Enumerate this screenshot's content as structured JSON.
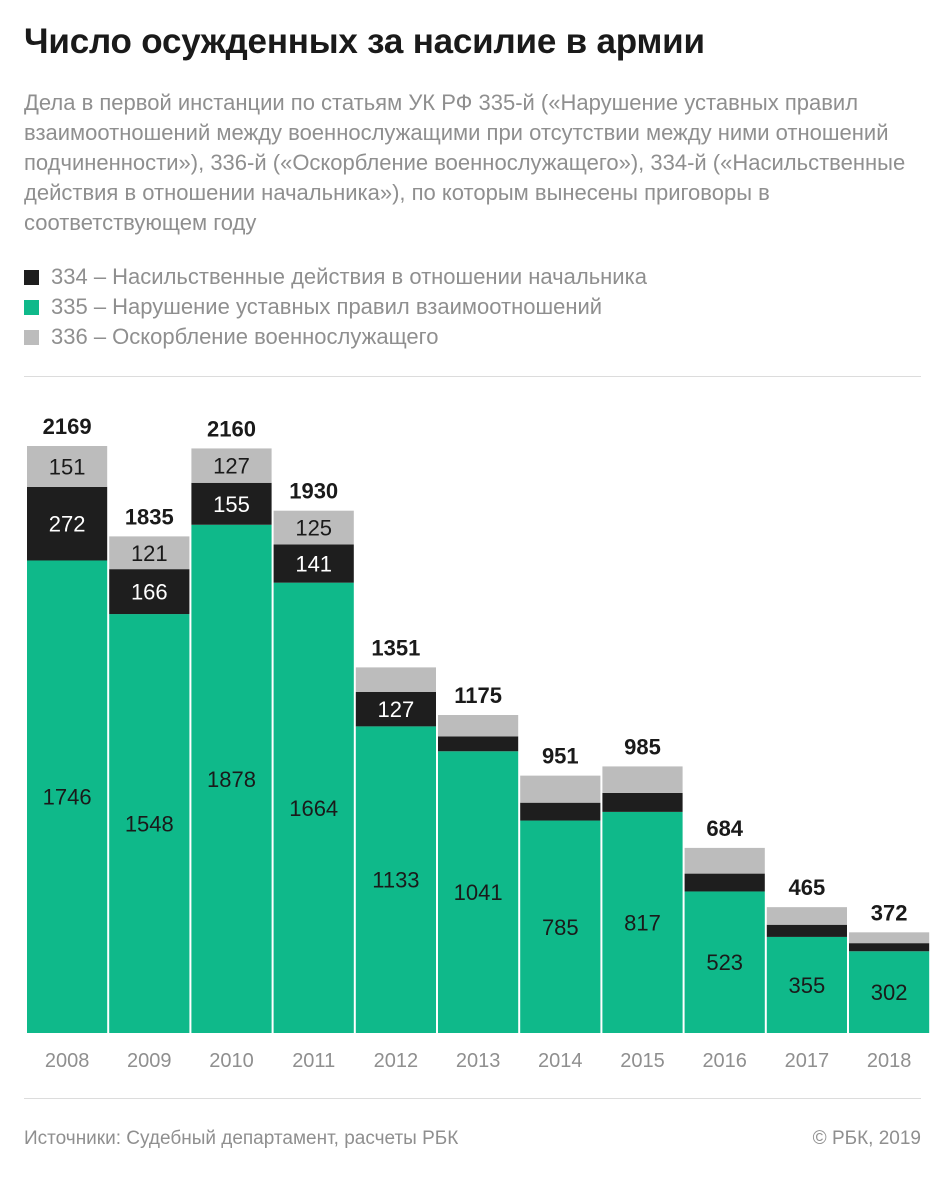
{
  "title": "Число осужденных за насилие в армии",
  "subtitle": "Дела в первой инстанции по статьям УК РФ 335-й («Нарушение уставных правил взаимоотношений между военнослужащими при отсутствии между ними отношений подчиненности»), 336-й («Оскорбление военнослужащего»), 334-й («Насильственные действия в отношении начальника»), по которым вынесены приговоры в соответствующем году",
  "legend": [
    {
      "label": "334 – Насильственные действия в отношении начальника",
      "color": "#1e1e1e"
    },
    {
      "label": "335 – Нарушение уставных правил взаимоотношений",
      "color": "#0fb98a"
    },
    {
      "label": "336 – Оскорбление военнослужащего",
      "color": "#bcbcbc"
    }
  ],
  "chart_data": {
    "type": "bar",
    "stacked": true,
    "categories": [
      "2008",
      "2009",
      "2010",
      "2011",
      "2012",
      "2013",
      "2014",
      "2015",
      "2016",
      "2017",
      "2018"
    ],
    "series": [
      {
        "name": "335",
        "color": "#0fb98a",
        "values": [
          1746,
          1548,
          1878,
          1664,
          1133,
          1041,
          785,
          817,
          523,
          355,
          302
        ],
        "labels": [
          "1746",
          "1548",
          "1878",
          "1664",
          "1133",
          "1041",
          "785",
          "817",
          "523",
          "355",
          "302"
        ]
      },
      {
        "name": "334",
        "color": "#1e1e1e",
        "values": [
          272,
          166,
          155,
          141,
          127,
          55,
          66,
          70,
          66,
          45,
          30
        ],
        "labels": [
          "272",
          "166",
          "155",
          "141",
          "127",
          "",
          "",
          "",
          "",
          "",
          ""
        ]
      },
      {
        "name": "336",
        "color": "#bcbcbc",
        "values": [
          151,
          121,
          127,
          125,
          91,
          79,
          100,
          98,
          95,
          65,
          40
        ],
        "labels": [
          "151",
          "121",
          "127",
          "125",
          "",
          "",
          "",
          "",
          "",
          "",
          ""
        ]
      }
    ],
    "totals": [
      2169,
      1835,
      2160,
      1930,
      1351,
      1175,
      951,
      985,
      684,
      465,
      372
    ],
    "total_labels": [
      "2169",
      "1835",
      "2160",
      "1930",
      "1351",
      "1175",
      "951",
      "985",
      "684",
      "465",
      "372"
    ],
    "ylim": [
      0,
      2169
    ]
  },
  "footer": {
    "source": "Источники: Судебный департамент, расчеты РБК",
    "copyright": "© РБК, 2019"
  }
}
